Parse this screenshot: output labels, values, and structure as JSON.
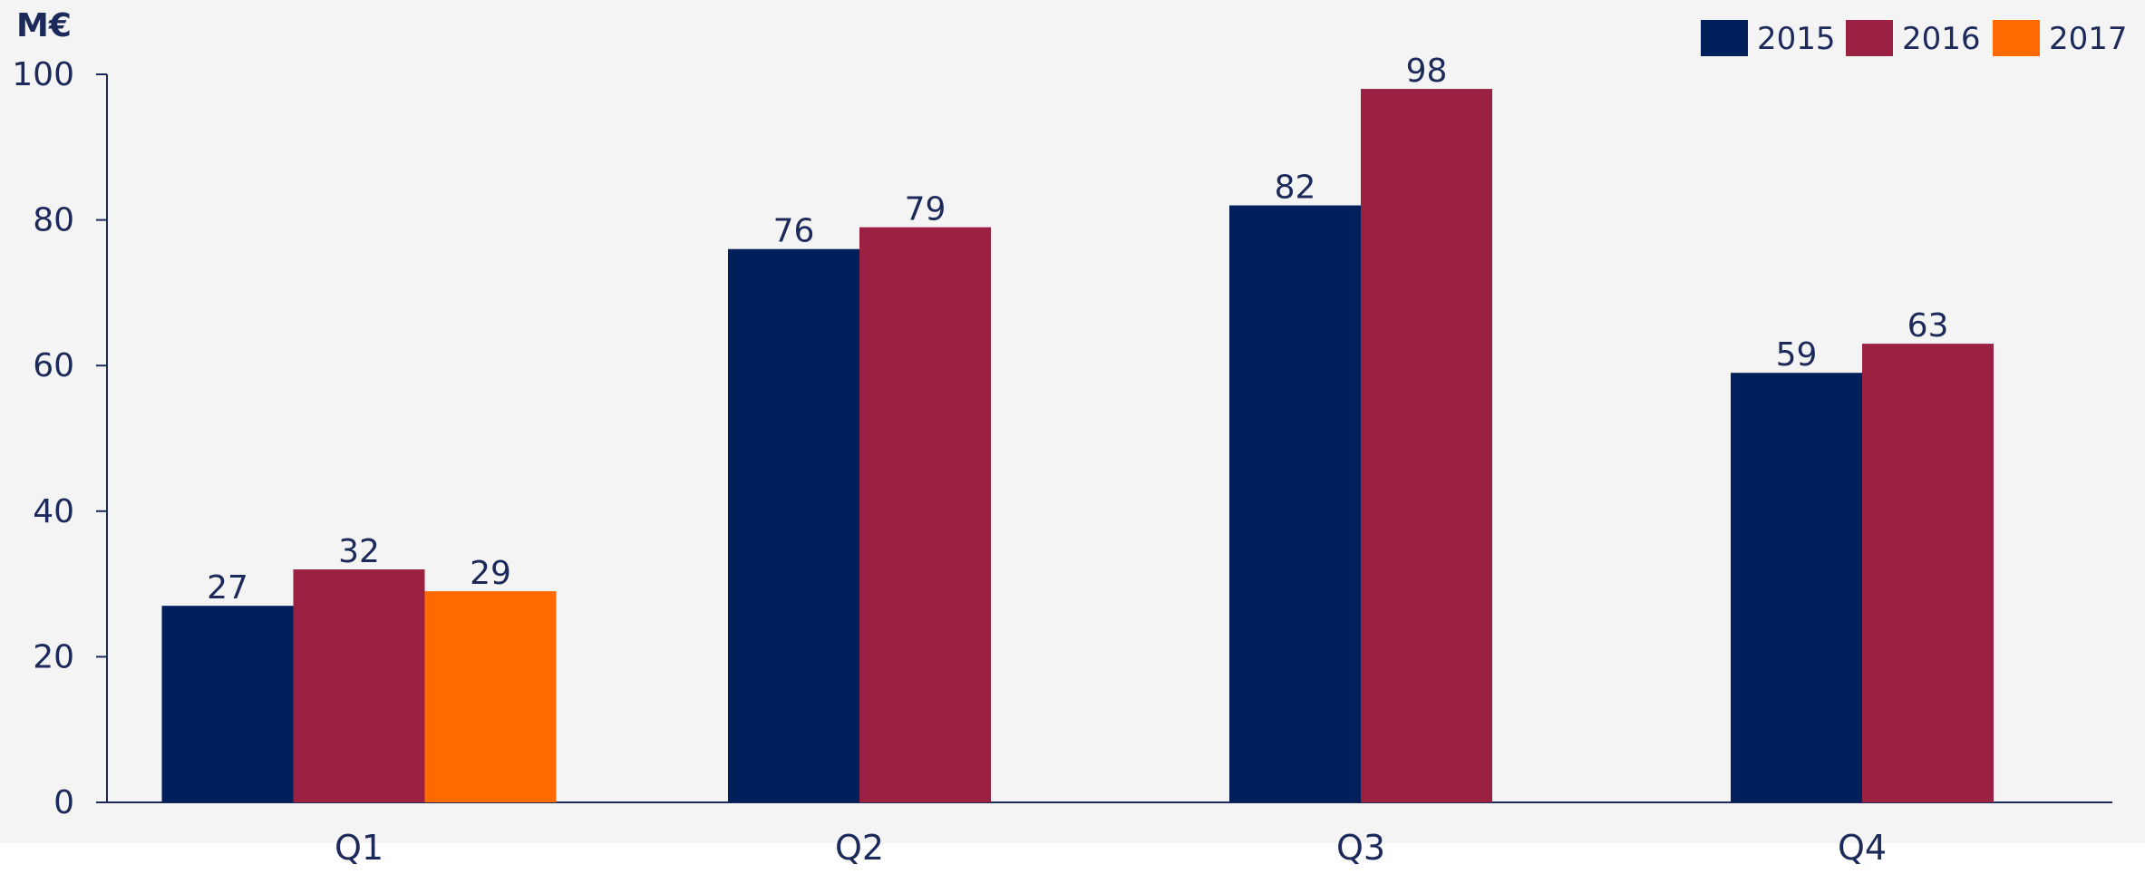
{
  "chart_data": {
    "type": "bar",
    "unit_label": "M€",
    "categories": [
      "Q1",
      "Q2",
      "Q3",
      "Q4"
    ],
    "series": [
      {
        "name": "2015",
        "color": "#001f5b",
        "values": [
          27,
          76,
          82,
          59
        ]
      },
      {
        "name": "2016",
        "color": "#9b2142",
        "values": [
          32,
          79,
          98,
          63
        ]
      },
      {
        "name": "2017",
        "color": "#ff6a00",
        "values": [
          29,
          null,
          null,
          null
        ]
      }
    ],
    "ylim": [
      0,
      100
    ],
    "y_ticks": [
      0,
      20,
      40,
      60,
      80,
      100
    ],
    "legend_position": "top-right",
    "grid": false
  },
  "colors": {
    "background": "#f4f4f4",
    "axis": "#1b2a5a",
    "text": "#1b2a5a"
  }
}
